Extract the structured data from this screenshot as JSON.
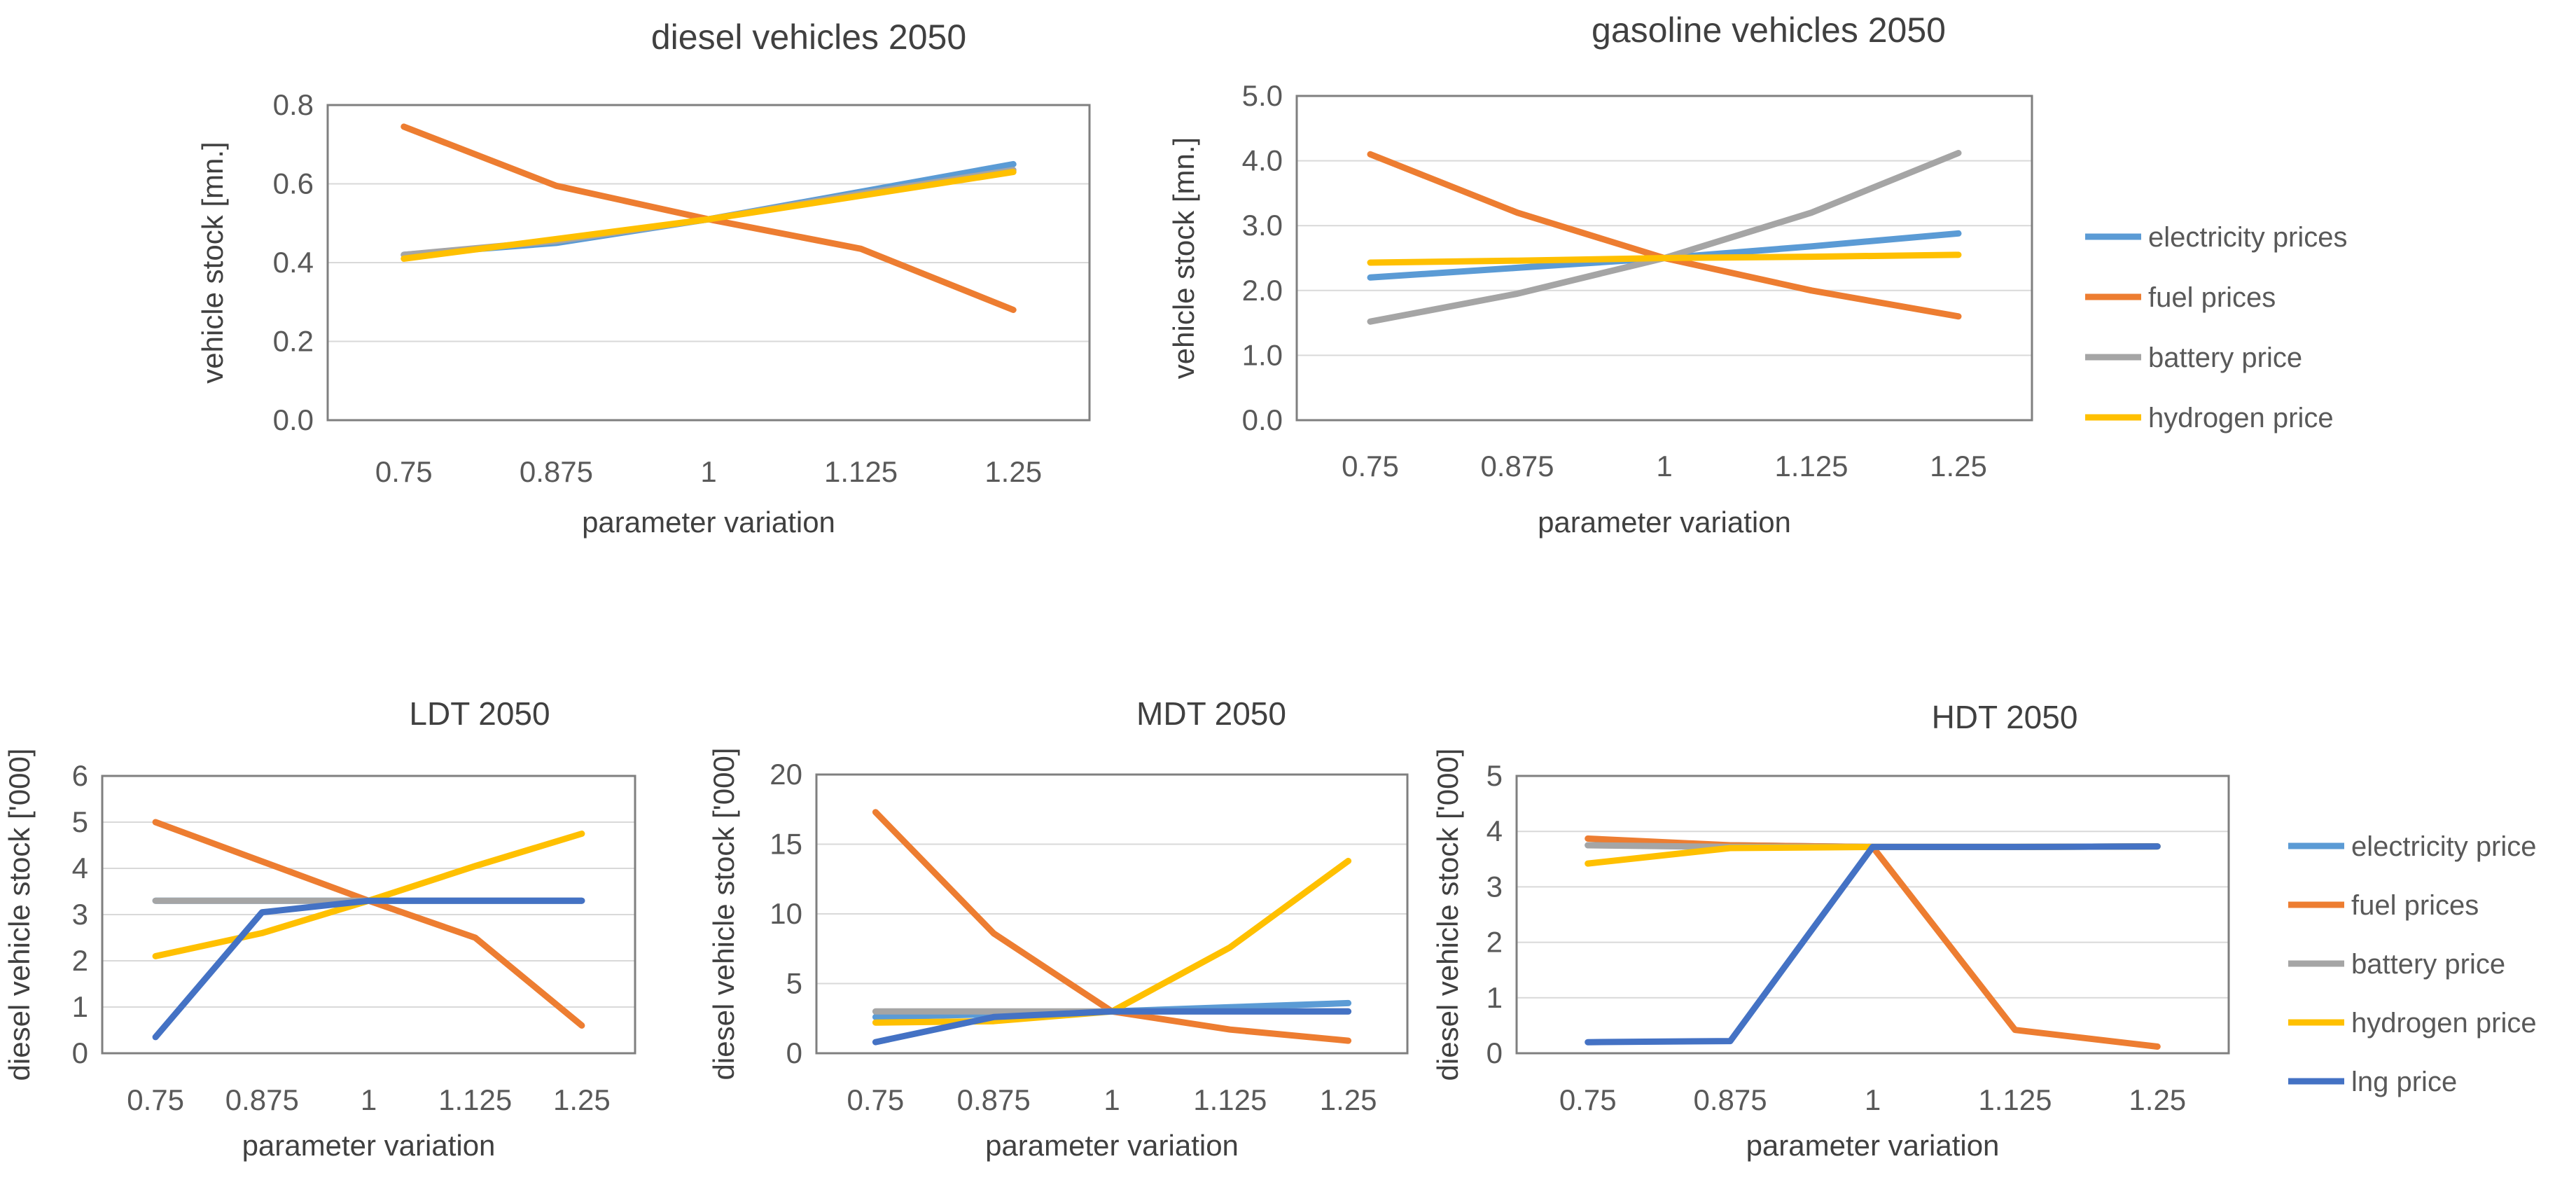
{
  "chart_data": [
    {
      "id": "diesel",
      "type": "line",
      "title": "diesel vehicles 2050",
      "xlabel": "parameter variation",
      "ylabel": "vehicle stock [mn.]",
      "categories": [
        "0.75",
        "0.875",
        "1",
        "1.125",
        "1.25"
      ],
      "ylim": [
        0,
        0.8
      ],
      "yticks": [
        "0.0",
        "0.2",
        "0.4",
        "0.6",
        "0.8"
      ],
      "series": [
        {
          "name": "electricity prices",
          "color": "#5b9bd5",
          "values": [
            0.42,
            0.45,
            0.51,
            0.58,
            0.65
          ]
        },
        {
          "name": "fuel prices",
          "color": "#ed7d31",
          "values": [
            0.745,
            0.595,
            0.51,
            0.435,
            0.28
          ]
        },
        {
          "name": "battery price",
          "color": "#a5a5a5",
          "values": [
            0.42,
            0.455,
            0.51,
            0.575,
            0.635
          ]
        },
        {
          "name": "hydrogen price",
          "color": "#ffc000",
          "values": [
            0.41,
            0.46,
            0.51,
            0.57,
            0.63
          ]
        }
      ]
    },
    {
      "id": "gasoline",
      "type": "line",
      "title": "gasoline vehicles 2050",
      "xlabel": "parameter variation",
      "ylabel": "vehicle stock [mn.]",
      "categories": [
        "0.75",
        "0.875",
        "1",
        "1.125",
        "1.25"
      ],
      "ylim": [
        0,
        5
      ],
      "yticks": [
        "0.0",
        "1.0",
        "2.0",
        "3.0",
        "4.0",
        "5.0"
      ],
      "series": [
        {
          "name": "electricity prices",
          "color": "#5b9bd5",
          "values": [
            2.2,
            2.35,
            2.5,
            2.68,
            2.88
          ]
        },
        {
          "name": "fuel prices",
          "color": "#ed7d31",
          "values": [
            4.1,
            3.2,
            2.5,
            2.0,
            1.6
          ]
        },
        {
          "name": "battery price",
          "color": "#a5a5a5",
          "values": [
            1.52,
            1.95,
            2.5,
            3.2,
            4.12
          ]
        },
        {
          "name": "hydrogen price",
          "color": "#ffc000",
          "values": [
            2.43,
            2.46,
            2.5,
            2.52,
            2.55
          ]
        }
      ]
    },
    {
      "id": "ldt",
      "type": "line",
      "title": "LDT 2050",
      "xlabel": "parameter variation",
      "ylabel": "diesel vehicle stock ['000]",
      "categories": [
        "0.75",
        "0.875",
        "1",
        "1.125",
        "1.25"
      ],
      "ylim": [
        0,
        6
      ],
      "yticks": [
        "0",
        "1",
        "2",
        "3",
        "4",
        "5",
        "6"
      ],
      "series": [
        {
          "name": "electricity price",
          "color": "#5b9bd5",
          "values": [
            3.3,
            3.3,
            3.3,
            3.3,
            3.3
          ]
        },
        {
          "name": "fuel prices",
          "color": "#ed7d31",
          "values": [
            5.0,
            4.15,
            3.3,
            2.5,
            0.6
          ]
        },
        {
          "name": "battery price",
          "color": "#a5a5a5",
          "values": [
            3.3,
            3.3,
            3.3,
            3.3,
            3.3
          ]
        },
        {
          "name": "hydrogen price",
          "color": "#ffc000",
          "values": [
            2.1,
            2.6,
            3.3,
            4.05,
            4.75
          ]
        },
        {
          "name": "lng price",
          "color": "#4472c4",
          "values": [
            0.35,
            3.05,
            3.3,
            3.3,
            3.3
          ]
        }
      ]
    },
    {
      "id": "mdt",
      "type": "line",
      "title": "MDT 2050",
      "xlabel": "parameter variation",
      "ylabel": "diesel vehicle stock ['000]",
      "categories": [
        "0.75",
        "0.875",
        "1",
        "1.125",
        "1.25"
      ],
      "ylim": [
        0,
        20
      ],
      "yticks": [
        "0",
        "5",
        "10",
        "15",
        "20"
      ],
      "series": [
        {
          "name": "electricity price",
          "color": "#5b9bd5",
          "values": [
            2.6,
            2.8,
            3.0,
            3.3,
            3.6
          ]
        },
        {
          "name": "fuel prices",
          "color": "#ed7d31",
          "values": [
            17.3,
            8.6,
            3.0,
            1.7,
            0.9
          ]
        },
        {
          "name": "battery price",
          "color": "#a5a5a5",
          "values": [
            3.0,
            3.0,
            3.0,
            3.0,
            3.0
          ]
        },
        {
          "name": "hydrogen price",
          "color": "#ffc000",
          "values": [
            2.2,
            2.3,
            3.0,
            7.6,
            13.8
          ]
        },
        {
          "name": "lng price",
          "color": "#4472c4",
          "values": [
            0.8,
            2.6,
            3.0,
            3.0,
            3.0
          ]
        }
      ]
    },
    {
      "id": "hdt",
      "type": "line",
      "title": "HDT 2050",
      "xlabel": "parameter variation",
      "ylabel": "diesel vehicle stock ['000]",
      "categories": [
        "0.75",
        "0.875",
        "1",
        "1.125",
        "1.25"
      ],
      "ylim": [
        0,
        5
      ],
      "yticks": [
        "0",
        "1",
        "2",
        "3",
        "4",
        "5"
      ],
      "series": [
        {
          "name": "electricity price",
          "color": "#5b9bd5",
          "values": [
            3.75,
            3.75,
            3.72,
            3.72,
            3.73
          ]
        },
        {
          "name": "fuel prices",
          "color": "#ed7d31",
          "values": [
            3.87,
            3.75,
            3.72,
            0.42,
            0.12
          ]
        },
        {
          "name": "battery price",
          "color": "#a5a5a5",
          "values": [
            3.75,
            3.72,
            3.72,
            3.72,
            3.73
          ]
        },
        {
          "name": "hydrogen price",
          "color": "#ffc000",
          "values": [
            3.42,
            3.7,
            3.72,
            3.72,
            3.73
          ]
        },
        {
          "name": "lng price",
          "color": "#4472c4",
          "values": [
            0.2,
            0.22,
            3.72,
            3.72,
            3.73
          ]
        }
      ]
    }
  ],
  "legends": {
    "top": [
      "electricity prices",
      "fuel prices",
      "battery price",
      "hydrogen price"
    ],
    "top_colors": [
      "#5b9bd5",
      "#ed7d31",
      "#a5a5a5",
      "#ffc000"
    ],
    "bottom": [
      "electricity price",
      "fuel prices",
      "battery price",
      "hydrogen price",
      "lng price"
    ],
    "bottom_colors": [
      "#5b9bd5",
      "#ed7d31",
      "#a5a5a5",
      "#ffc000",
      "#4472c4"
    ]
  }
}
